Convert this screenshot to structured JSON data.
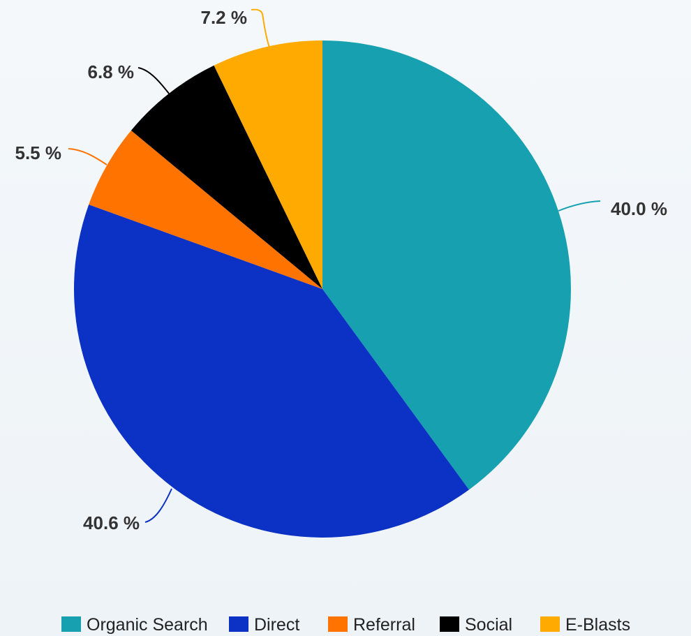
{
  "chart_data": {
    "type": "pie",
    "title": "",
    "legend_position": "bottom",
    "slices": [
      {
        "name": "Organic Search",
        "value": 40.0,
        "label": "40.0 %",
        "color": "#16a0b0"
      },
      {
        "name": "Direct",
        "value": 40.6,
        "label": "40.6 %",
        "color": "#0b32c4"
      },
      {
        "name": "Referral",
        "value": 5.5,
        "label": "5.5 %",
        "color": "#ff7300"
      },
      {
        "name": "Social",
        "value": 6.8,
        "label": "6.8 %",
        "color": "#000000"
      },
      {
        "name": "E-Blasts",
        "value": 7.2,
        "label": "7.2 %",
        "color": "#ffaa00"
      }
    ]
  }
}
